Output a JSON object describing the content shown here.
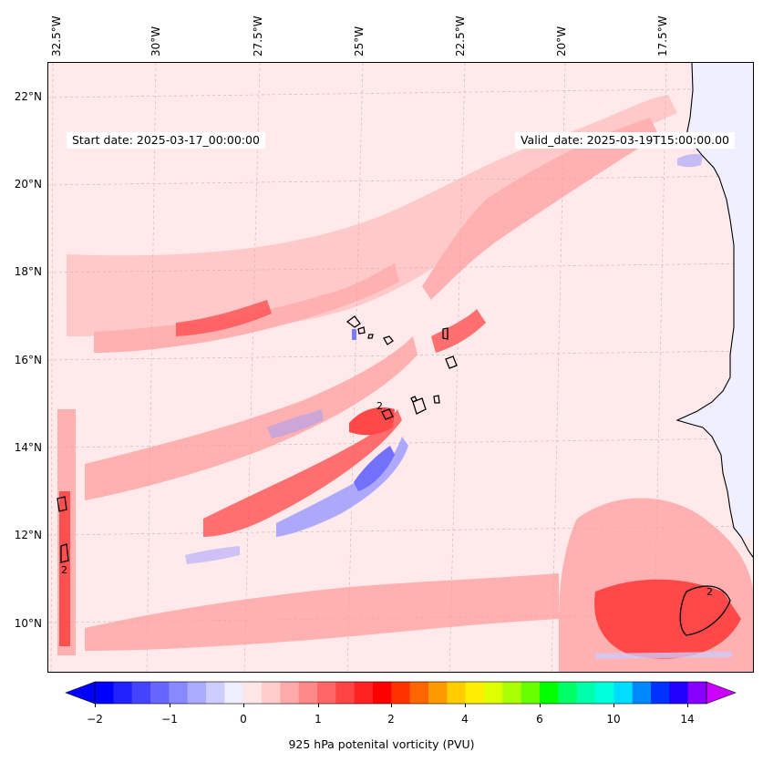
{
  "header": {
    "start_date": "Start date: 2025-03-17_00:00:00",
    "valid_date": "Valid_date: 2025-03-19T15:00:00.00"
  },
  "longitude_labels": [
    "32.5°W",
    "30°W",
    "27.5°W",
    "25°W",
    "22.5°W",
    "20°W",
    "17.5°W"
  ],
  "latitude_labels": [
    "22°N",
    "20°N",
    "18°N",
    "16°N",
    "14°N",
    "12°N",
    "10°N"
  ],
  "contour_labels": [
    "2",
    "2",
    "2"
  ],
  "colorbar": {
    "label": "925 hPa potenital vorticity (PVU)",
    "tick_labels": [
      "−2",
      "−1",
      "0",
      "1",
      "2",
      "4",
      "6",
      "10",
      "14"
    ],
    "colors": [
      "#0000ff",
      "#2222ff",
      "#4444ff",
      "#6666ff",
      "#8888ff",
      "#aaaaff",
      "#ccccff",
      "#eeeeff",
      "#ffe6e6",
      "#ffcccc",
      "#ffaaaa",
      "#ff8888",
      "#ff6666",
      "#ff4444",
      "#ff2222",
      "#ff0000",
      "#ff3300",
      "#ff6600",
      "#ff9900",
      "#ffcc00",
      "#ffee00",
      "#ddff00",
      "#aaff00",
      "#66ff00",
      "#00ff00",
      "#00ff66",
      "#00ffaa",
      "#00ffdd",
      "#00ddff",
      "#0088ff",
      "#0033ff",
      "#2200ff",
      "#8800ff"
    ],
    "min_arrow_color": "#0000ff",
    "max_arrow_color": "#cc00ff"
  },
  "colors": {
    "background_field": "#ffe9ea",
    "positive_band": "#ff9a9a",
    "strong_positive": "#ff2a2a",
    "negative_band": "#9a9aff",
    "land": "#efefff",
    "coastline": "#000000"
  }
}
